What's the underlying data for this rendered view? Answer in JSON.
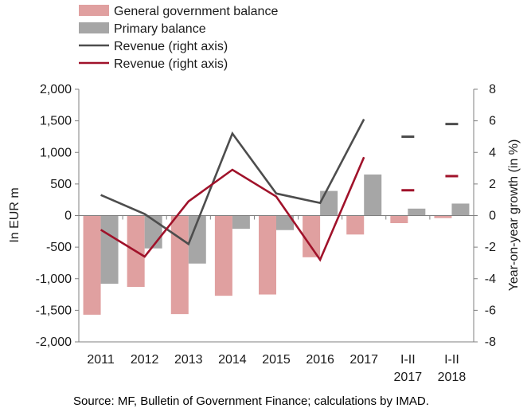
{
  "chart_data": {
    "type": "bar",
    "categories": [
      [
        "2011"
      ],
      [
        "2012"
      ],
      [
        "2013"
      ],
      [
        "2014"
      ],
      [
        "2015"
      ],
      [
        "2016"
      ],
      [
        "2017"
      ],
      [
        "I-II",
        "2017"
      ],
      [
        "I-II",
        "2018"
      ]
    ],
    "bar_series": [
      {
        "name": "General government balance",
        "color": "#e0a0a0",
        "values": [
          -1570,
          -1130,
          -1560,
          -1270,
          -1250,
          -660,
          -300,
          -120,
          -40
        ]
      },
      {
        "name": "Primary balance",
        "color": "#a6a6a6",
        "values": [
          -1080,
          -520,
          -760,
          -210,
          -230,
          390,
          650,
          110,
          190
        ]
      }
    ],
    "line_series": [
      {
        "name": "Revenue (right axis)",
        "color": "#4d4d4d",
        "values": [
          1.3,
          0.1,
          -1.8,
          5.2,
          1.4,
          0.8,
          6.1
        ],
        "markers": [
          {
            "category": 7,
            "value": 5.0
          },
          {
            "category": 8,
            "value": 5.8
          }
        ]
      },
      {
        "name": "Revenue (right axis)",
        "color": "#a0122a",
        "values": [
          -0.9,
          -2.6,
          0.9,
          2.9,
          1.2,
          -2.8,
          3.7
        ],
        "markers": [
          {
            "category": 7,
            "value": 1.6
          },
          {
            "category": 8,
            "value": 2.5
          }
        ]
      }
    ],
    "left_axis": {
      "label": "In EUR m",
      "ticks": [
        "2,000",
        "1,500",
        "1,000",
        "500",
        "0",
        "-500",
        "-1,000",
        "-1,500",
        "-2,000"
      ],
      "range": [
        -2000,
        2000
      ]
    },
    "right_axis": {
      "label": "Year-on-year growth (in %)",
      "ticks": [
        "8",
        "6",
        "4",
        "2",
        "0",
        "-2",
        "-4",
        "-6",
        "-8"
      ],
      "range": [
        -8,
        8
      ]
    },
    "legend_position": "top-left",
    "grid": false
  },
  "source": "Source: MF,  Bulletin of Government Finance; calculations by IMAD."
}
